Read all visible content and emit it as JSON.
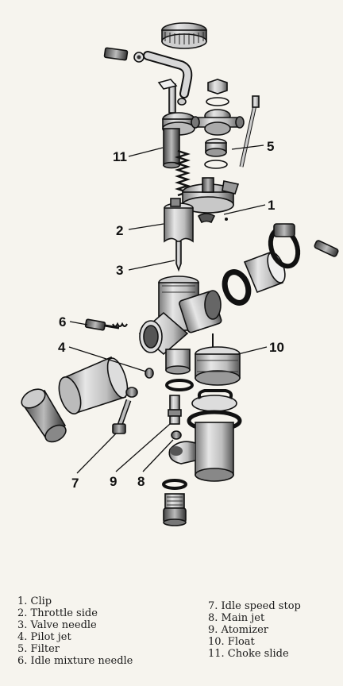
{
  "callouts": {
    "c1": "1",
    "c2": "2",
    "c3": "3",
    "c4": "4",
    "c5": "5",
    "c6": "6",
    "c7": "7",
    "c8": "8",
    "c9": "9",
    "c10": "10",
    "c11": "11"
  },
  "legend": {
    "left": [
      "1. Clip",
      "2. Throttle side",
      "3. Valve needle",
      "4. Pilot jet",
      "5. Filter",
      "6. Idle mixture needle"
    ],
    "right": [
      "7. Idle speed stop",
      "8. Main jet",
      "9. Atomizer",
      "10. Float",
      "11. Choke slide"
    ]
  }
}
